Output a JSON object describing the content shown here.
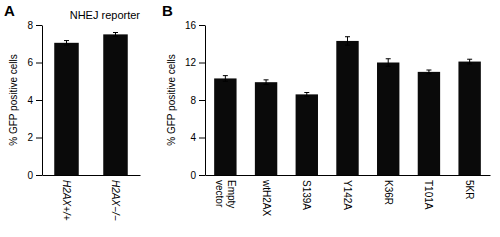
{
  "chart_data": [
    {
      "type": "bar",
      "title": "NHEJ reporter",
      "annotations": [
        "A"
      ],
      "categories": [
        "H2AX+/+",
        "H2AX−/−"
      ],
      "values": [
        7.05,
        7.5
      ],
      "errors": [
        0.12,
        0.1
      ],
      "ylim": [
        0,
        8
      ],
      "yticks": [
        0,
        2,
        4,
        6,
        8
      ],
      "ylabel": "% GFP positive cells",
      "color": "#0a0a0a"
    },
    {
      "type": "bar",
      "annotations": [
        "B"
      ],
      "categories": [
        "Empty\nvector",
        "wtH2AX",
        "S139A",
        "Y142A",
        "K36R",
        "T101A",
        "5KR"
      ],
      "values": [
        10.3,
        9.9,
        8.6,
        14.3,
        12.0,
        11.0,
        12.1
      ],
      "errors": [
        0.3,
        0.25,
        0.2,
        0.45,
        0.4,
        0.2,
        0.25
      ],
      "ylim": [
        0,
        16
      ],
      "yticks": [
        0,
        4,
        8,
        12,
        16
      ],
      "ylabel": "% GFP positive cells",
      "color": "#0a0a0a"
    }
  ]
}
